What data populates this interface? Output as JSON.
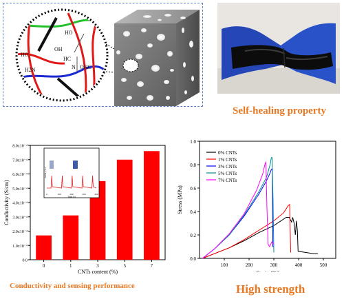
{
  "schematic": {
    "molecule_labels": [
      "HO",
      "OH",
      "HO",
      "HC",
      "N",
      "H2N",
      "OHC"
    ]
  },
  "captions": {
    "self_healing": "Self-healing property",
    "conductivity": "Conductivity and sensing performance",
    "strength": "High strength"
  },
  "colors": {
    "caption": "#e87722",
    "bar": "#ff0000",
    "frame": "#5b7fc4"
  },
  "chart_data": [
    {
      "type": "bar",
      "categories": [
        "0",
        "1",
        "3",
        "5",
        "7"
      ],
      "values": [
        0.00017,
        0.00031,
        0.00055,
        0.0007,
        0.00076
      ],
      "ylabel": "Conductivity (S/cm)",
      "xlabel": "CNTs content (%)",
      "ylim": [
        0,
        0.0008
      ],
      "yticks": [
        "0.0",
        "1.0x10⁻⁴",
        "2.0x10⁻⁴",
        "3.0x10⁻⁴",
        "4.0x10⁻⁴",
        "5.0x10⁻⁴",
        "6.0x10⁻⁴",
        "7.0x10⁻⁴",
        "8.0x10⁻⁴"
      ],
      "inset": {
        "type": "line",
        "ylabel": "ΔR/R₀ (%)",
        "xlabel": "Time (s)",
        "xticks": [
          "0",
          "100",
          "200",
          "300",
          "400"
        ],
        "peaks_at_s": [
          40,
          125,
          205,
          290,
          370
        ]
      }
    },
    {
      "type": "line",
      "xlabel": "Strain (%)",
      "ylabel": "Stress (MPa)",
      "xlim": [
        0,
        550
      ],
      "ylim": [
        0,
        1.0
      ],
      "xticks": [
        "100",
        "200",
        "300",
        "400",
        "500"
      ],
      "yticks": [
        "0.0",
        "0.2",
        "0.4",
        "0.6",
        "0.8",
        "1.0"
      ],
      "series": [
        {
          "name": "0% CNTs",
          "color": "#000000",
          "points": [
            [
              12,
              0
            ],
            [
              60,
              0.04
            ],
            [
              120,
              0.09
            ],
            [
              180,
              0.15
            ],
            [
              240,
              0.22
            ],
            [
              300,
              0.28
            ],
            [
              350,
              0.35
            ],
            [
              362,
              0.35
            ],
            [
              372,
              0.31
            ],
            [
              376,
              0.35
            ],
            [
              382,
              0.3
            ],
            [
              387,
              0.2
            ],
            [
              391,
              0.32
            ],
            [
              395,
              0.24
            ],
            [
              398,
              0.06
            ],
            [
              430,
              0.05
            ],
            [
              460,
              0.04
            ],
            [
              478,
              0.04
            ]
          ]
        },
        {
          "name": "1% CNTs",
          "color": "#ff0000",
          "points": [
            [
              12,
              0
            ],
            [
              60,
              0.04
            ],
            [
              120,
              0.09
            ],
            [
              180,
              0.16
            ],
            [
              240,
              0.24
            ],
            [
              300,
              0.32
            ],
            [
              340,
              0.39
            ],
            [
              358,
              0.45
            ],
            [
              364,
              0.46
            ],
            [
              368,
              0.05
            ]
          ]
        },
        {
          "name": "3% CNTs",
          "color": "#0000ff",
          "points": [
            [
              12,
              0
            ],
            [
              60,
              0.08
            ],
            [
              120,
              0.2
            ],
            [
              180,
              0.36
            ],
            [
              240,
              0.55
            ],
            [
              270,
              0.66
            ],
            [
              285,
              0.73
            ],
            [
              290,
              0.76
            ],
            [
              294,
              0.76
            ],
            [
              296,
              0.1
            ],
            [
              300,
              0.1
            ]
          ]
        },
        {
          "name": "5% CNTs",
          "color": "#008b8b",
          "points": [
            [
              12,
              0
            ],
            [
              60,
              0.08
            ],
            [
              120,
              0.2
            ],
            [
              180,
              0.37
            ],
            [
              240,
              0.57
            ],
            [
              270,
              0.69
            ],
            [
              285,
              0.8
            ],
            [
              290,
              0.86
            ],
            [
              293,
              0.86
            ],
            [
              297,
              0.5
            ],
            [
              300,
              0.05
            ]
          ]
        },
        {
          "name": "7% CNTs",
          "color": "#ff00ff",
          "points": [
            [
              12,
              0
            ],
            [
              60,
              0.08
            ],
            [
              120,
              0.21
            ],
            [
              180,
              0.38
            ],
            [
              230,
              0.58
            ],
            [
              255,
              0.72
            ],
            [
              265,
              0.81
            ],
            [
              268,
              0.82
            ],
            [
              272,
              0.45
            ],
            [
              277,
              0.12
            ],
            [
              283,
              0.1
            ],
            [
              292,
              0.14
            ],
            [
              300,
              0.12
            ]
          ]
        }
      ]
    }
  ]
}
